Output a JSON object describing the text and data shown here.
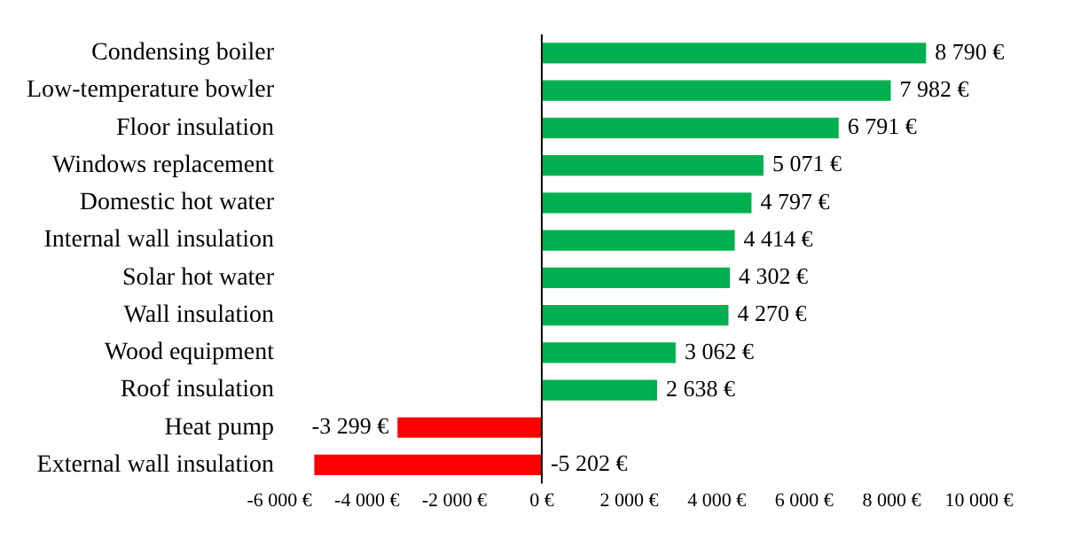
{
  "chart_data": {
    "type": "bar",
    "orientation": "horizontal",
    "categories": [
      "Condensing boiler",
      "Low-temperature bowler",
      "Floor insulation",
      "Windows replacement",
      "Domestic hot water",
      "Internal wall insulation",
      "Solar hot water",
      "Wall insulation",
      "Wood equipment",
      "Roof insulation",
      "Heat pump",
      "External wall insulation"
    ],
    "values": [
      8790,
      7982,
      6791,
      5071,
      4797,
      4414,
      4302,
      4270,
      3062,
      2638,
      -3299,
      -5202
    ],
    "colors": [
      "#00b050",
      "#00b050",
      "#00b050",
      "#00b050",
      "#00b050",
      "#00b050",
      "#00b050",
      "#00b050",
      "#00b050",
      "#00b050",
      "#ff0000",
      "#ff0000"
    ],
    "value_labels": [
      "8 790 €",
      "7 982 €",
      "6 791 €",
      "5 071 €",
      "4 797 €",
      "4 414 €",
      "4 302 €",
      "4 270 €",
      "3 062 €",
      "2 638 €",
      "-3 299 €",
      "-5 202 €"
    ],
    "xlim": [
      -6000,
      10000
    ],
    "xticks": [
      {
        "value": -6000,
        "label": "-6 000 €"
      },
      {
        "value": -4000,
        "label": "-4 000 €"
      },
      {
        "value": -2000,
        "label": "-2 000 €"
      },
      {
        "value": 0,
        "label": "0 €"
      },
      {
        "value": 2000,
        "label": "2 000 €"
      },
      {
        "value": 4000,
        "label": "4 000 €"
      },
      {
        "value": 6000,
        "label": "6 000 €"
      },
      {
        "value": 8000,
        "label": "8 000 €"
      },
      {
        "value": 10000,
        "label": "10 000 €"
      }
    ],
    "ref_lines": [
      {
        "axis": "x",
        "value": 0,
        "color": "#000000"
      }
    ],
    "grid": false,
    "legend": false
  }
}
